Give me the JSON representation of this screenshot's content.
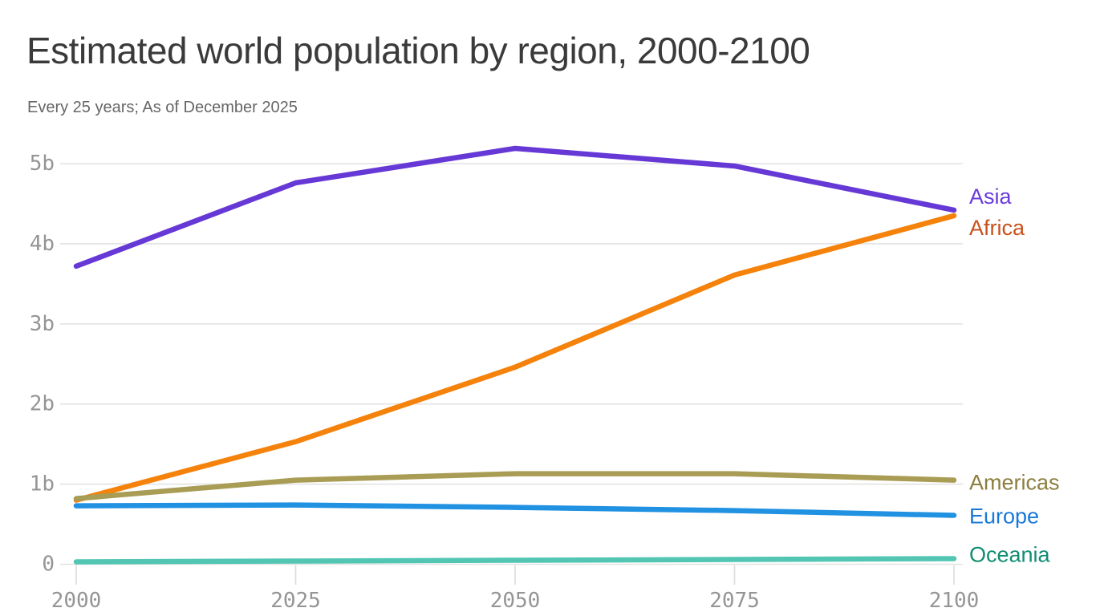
{
  "header": {
    "title": "Estimated world population by region, 2000-2100",
    "subtitle": "Every 25 years; As of December 2025"
  },
  "chart_data": {
    "type": "line",
    "title": "Estimated world population by region, 2000-2100",
    "subtitle": "Every 25 years; As of December 2025",
    "unit": "billions of people",
    "x": [
      2000,
      2025,
      2050,
      2075,
      2100
    ],
    "x_tick_labels": [
      "2000",
      "2025",
      "2050",
      "2075",
      "2100"
    ],
    "y_ticks": [
      0,
      1,
      2,
      3,
      4,
      5
    ],
    "y_tick_labels": [
      "0",
      "1b",
      "2b",
      "3b",
      "4b",
      "5b"
    ],
    "ylim": [
      0,
      5.45
    ],
    "xlabel": "",
    "ylabel": "",
    "grid": "horizontal",
    "legend_position": "right-of-line-end",
    "series": [
      {
        "name": "Asia",
        "color": "#6638d6",
        "label_color": "#6b3bdb",
        "values": [
          3.72,
          4.76,
          5.19,
          4.97,
          4.42
        ]
      },
      {
        "name": "Africa",
        "color": "#f5820b",
        "label_color": "#c8511d",
        "values": [
          0.8,
          1.53,
          2.46,
          3.61,
          4.35
        ]
      },
      {
        "name": "Americas",
        "color": "#a99c55",
        "label_color": "#8c7e3d",
        "values": [
          0.82,
          1.05,
          1.13,
          1.13,
          1.05
        ]
      },
      {
        "name": "Europe",
        "color": "#2191e2",
        "label_color": "#1878d8",
        "values": [
          0.73,
          0.74,
          0.71,
          0.67,
          0.61
        ]
      },
      {
        "name": "Oceania",
        "color": "#52c6b3",
        "label_color": "#108d73",
        "values": [
          0.03,
          0.04,
          0.05,
          0.06,
          0.07
        ]
      }
    ],
    "colors": {
      "grid": "#e3e3e3",
      "tick_text": "#959595",
      "title_text": "#3a3a3a",
      "subtitle_text": "#666666",
      "background": "#ffffff"
    }
  }
}
